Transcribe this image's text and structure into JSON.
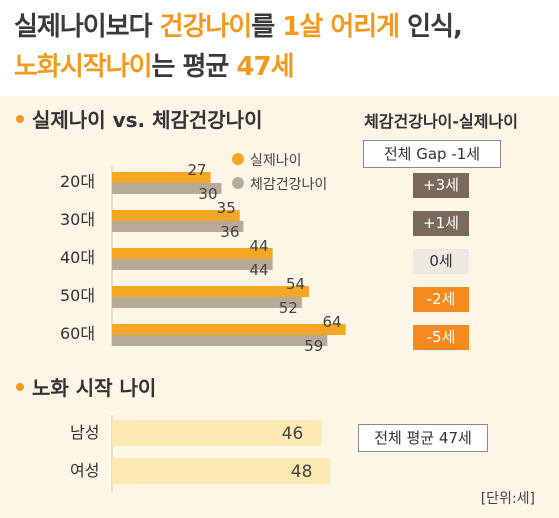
{
  "title": {
    "line1": [
      {
        "text": "실제나이보다 ",
        "hl": false
      },
      {
        "text": "건강나이",
        "hl": true
      },
      {
        "text": "를 ",
        "hl": false
      },
      {
        "text": "1살",
        "hl": true
      },
      {
        "text": " ",
        "hl": false
      },
      {
        "text": "어리게",
        "hl": true
      },
      {
        "text": " 인식,",
        "hl": false
      }
    ],
    "line2": [
      {
        "text": "노화시작나이",
        "hl": true
      },
      {
        "text": "는 평균 ",
        "hl": false
      },
      {
        "text": "47세",
        "hl": true
      }
    ]
  },
  "colors": {
    "actual": "#f5a623",
    "perceived": "#b8aa98",
    "accent": "#f39a1e",
    "badge_dark": "#7a6a5c",
    "badge_light": "#ece9e3",
    "badge_orange": "#f58a1f",
    "aging": "#fde9b4"
  },
  "chart_data": [
    {
      "type": "bar",
      "orientation": "horizontal",
      "title": "실제나이 vs. 체감건강나이",
      "categories": [
        "20대",
        "30대",
        "40대",
        "50대",
        "60대"
      ],
      "series": [
        {
          "name": "실제나이",
          "values": [
            27,
            35,
            44,
            54,
            64
          ]
        },
        {
          "name": "체감건강나이",
          "values": [
            30,
            36,
            44,
            52,
            59
          ]
        }
      ],
      "gap": {
        "header": "체감건강나이-실제나이",
        "total_label": "전체 Gap -1세",
        "values": [
          "+3세",
          "+1세",
          "0세",
          "-2세",
          "-5세"
        ]
      },
      "legend_position": "top-right"
    },
    {
      "type": "bar",
      "orientation": "horizontal",
      "title": "노화 시작 나이",
      "categories": [
        "남성",
        "여성"
      ],
      "values": [
        46,
        48
      ],
      "annotation": "전체 평균 47세",
      "unit": "[단위:세]"
    }
  ]
}
